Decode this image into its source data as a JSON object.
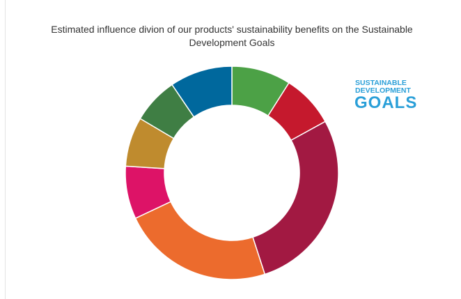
{
  "chart_data": {
    "type": "donut",
    "title": [
      "Estimated influence divion of our products' sustainability benefits on the Sustainable",
      "Development Goals"
    ],
    "values": [
      9,
      8,
      28,
      23,
      8,
      7.5,
      7,
      9.5
    ],
    "colors": [
      "#4ca146",
      "#c5192d",
      "#a21942",
      "#ec6b2d",
      "#dd1367",
      "#bf8b2e",
      "#3f7e44",
      "#00689d"
    ],
    "logo": [
      "SUSTAINABLE",
      "DEVELOPMENT",
      "GOALS"
    ]
  }
}
